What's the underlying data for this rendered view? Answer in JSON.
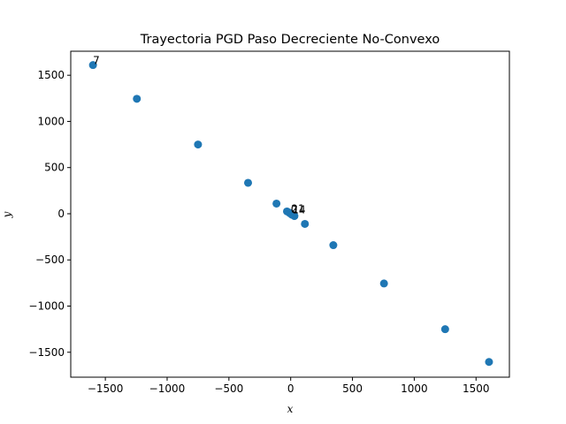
{
  "chart_data": {
    "type": "scatter",
    "title": "Trayectoria PGD Paso Decreciente No-Convexo",
    "xlabel": "x",
    "ylabel": "y",
    "xlim": [
      -1780,
      1770
    ],
    "ylim": [
      -1770,
      1760
    ],
    "xticks": [
      -1500,
      -1000,
      -500,
      0,
      500,
      1000,
      1500
    ],
    "yticks": [
      -1500,
      -1000,
      -500,
      0,
      500,
      1000,
      1500
    ],
    "xtick_labels": [
      "−1500",
      "−1000",
      "−500",
      "0",
      "500",
      "1000",
      "1500"
    ],
    "ytick_labels": [
      "−1500",
      "−1000",
      "−500",
      "0",
      "500",
      "1000",
      "1500"
    ],
    "grid": false,
    "color": "#1f77b4",
    "points": [
      {
        "x": -1600,
        "y": 1610
      },
      {
        "x": -1245,
        "y": 1245
      },
      {
        "x": -750,
        "y": 750
      },
      {
        "x": -345,
        "y": 335
      },
      {
        "x": -115,
        "y": 110
      },
      {
        "x": -30,
        "y": 25
      },
      {
        "x": -10,
        "y": 10
      },
      {
        "x": 0,
        "y": 0
      },
      {
        "x": 10,
        "y": -10
      },
      {
        "x": 30,
        "y": -25
      },
      {
        "x": 115,
        "y": -110
      },
      {
        "x": 345,
        "y": -340
      },
      {
        "x": 755,
        "y": -755
      },
      {
        "x": 1250,
        "y": -1250
      },
      {
        "x": 1605,
        "y": -1605
      }
    ],
    "annotations": [
      {
        "text": "7",
        "x": -1600,
        "y": 1610
      },
      {
        "text": "21",
        "x": 5,
        "y": 5
      },
      {
        "text": "14",
        "x": 12,
        "y": -5
      },
      {
        "text": "0",
        "x": 0,
        "y": 0
      }
    ]
  }
}
